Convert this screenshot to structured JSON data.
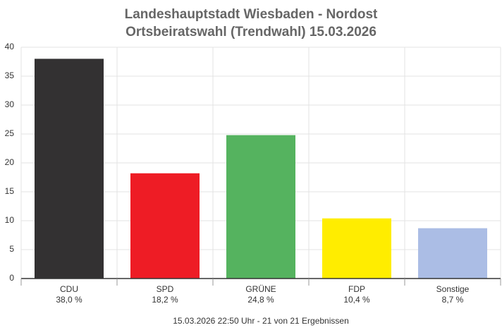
{
  "chart_data": {
    "type": "bar",
    "title": "Landeshauptstadt Wiesbaden - Nordost",
    "subtitle": "Ortsbeiratswahl (Trendwahl) 15.03.2026",
    "categories": [
      "CDU",
      "SPD",
      "GRÜNE",
      "FDP",
      "Sonstige"
    ],
    "values": [
      38.0,
      18.2,
      24.8,
      10.4,
      8.7
    ],
    "value_labels": [
      "38,0 %",
      "18,2 %",
      "24,8 %",
      "10,4 %",
      "8,7 %"
    ],
    "colors": [
      "#333132",
      "#ee1c25",
      "#55b35f",
      "#ffed00",
      "#abbde5"
    ],
    "ylim": [
      0,
      40
    ],
    "yticks": [
      0,
      5,
      10,
      15,
      20,
      25,
      30,
      35,
      40
    ],
    "grid": true,
    "caption": "15.03.2026 22:50 Uhr - 21 von 21 Ergebnissen"
  }
}
